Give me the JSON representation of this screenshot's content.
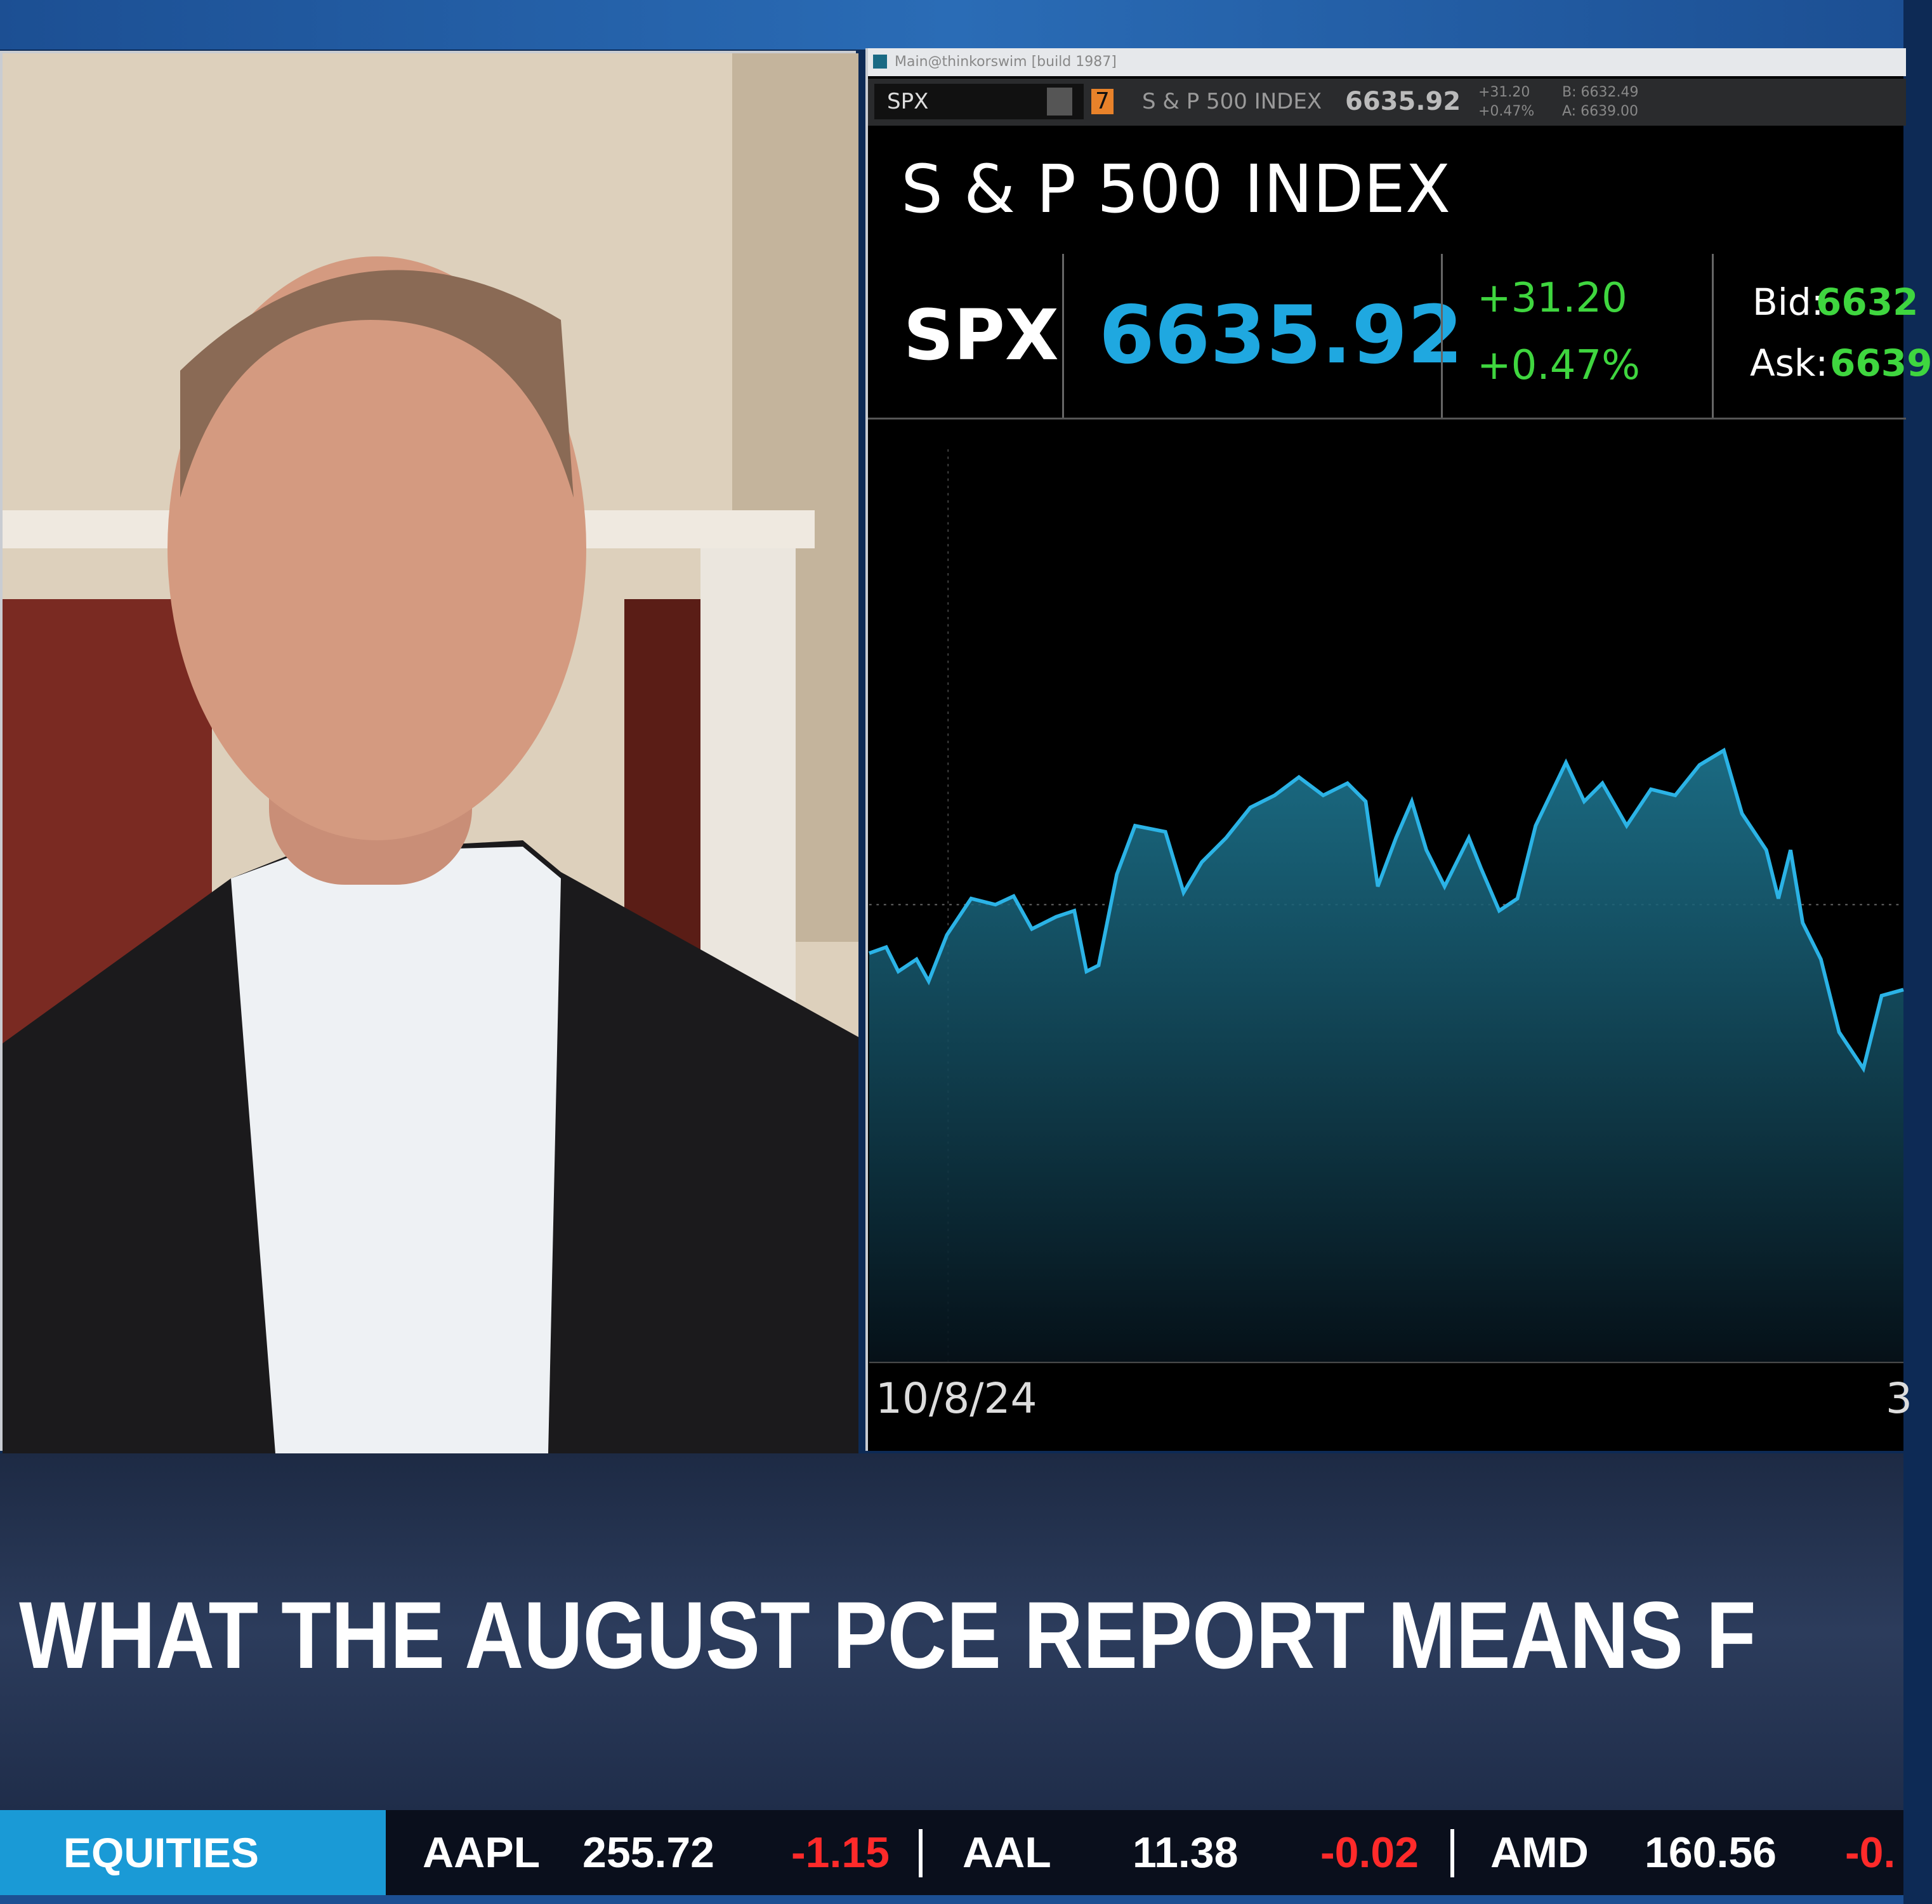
{
  "window": {
    "title": "Main@thinkorswim [build 1987]"
  },
  "toolbar": {
    "symbol": "SPX",
    "badge": "7",
    "name": "S & P 500 INDEX",
    "last": "6635.92",
    "change": "+31.20",
    "change_pct": "+0.47%",
    "bid": "B: 6632.49",
    "ask": "A: 6639.00"
  },
  "quote": {
    "title": "S & P 500 INDEX",
    "symbol": "SPX",
    "last": "6635.92",
    "change": "+31.20",
    "change_pct": "+0.47%",
    "bid_label": "Bid:",
    "bid": "6632",
    "ask_label": "Ask:",
    "ask": "6639"
  },
  "chart": {
    "start_date": "10/8/24",
    "end_date": "3"
  },
  "headline": "WHAT THE AUGUST PCE REPORT MEANS F",
  "ticker": {
    "section": "EQUITIES",
    "items": [
      [
        "AAPL",
        "255.72",
        "-1.15"
      ],
      [
        "AAL",
        "11.38",
        "-0.02"
      ],
      [
        "AMD",
        "160.56",
        "-0."
      ]
    ]
  }
}
